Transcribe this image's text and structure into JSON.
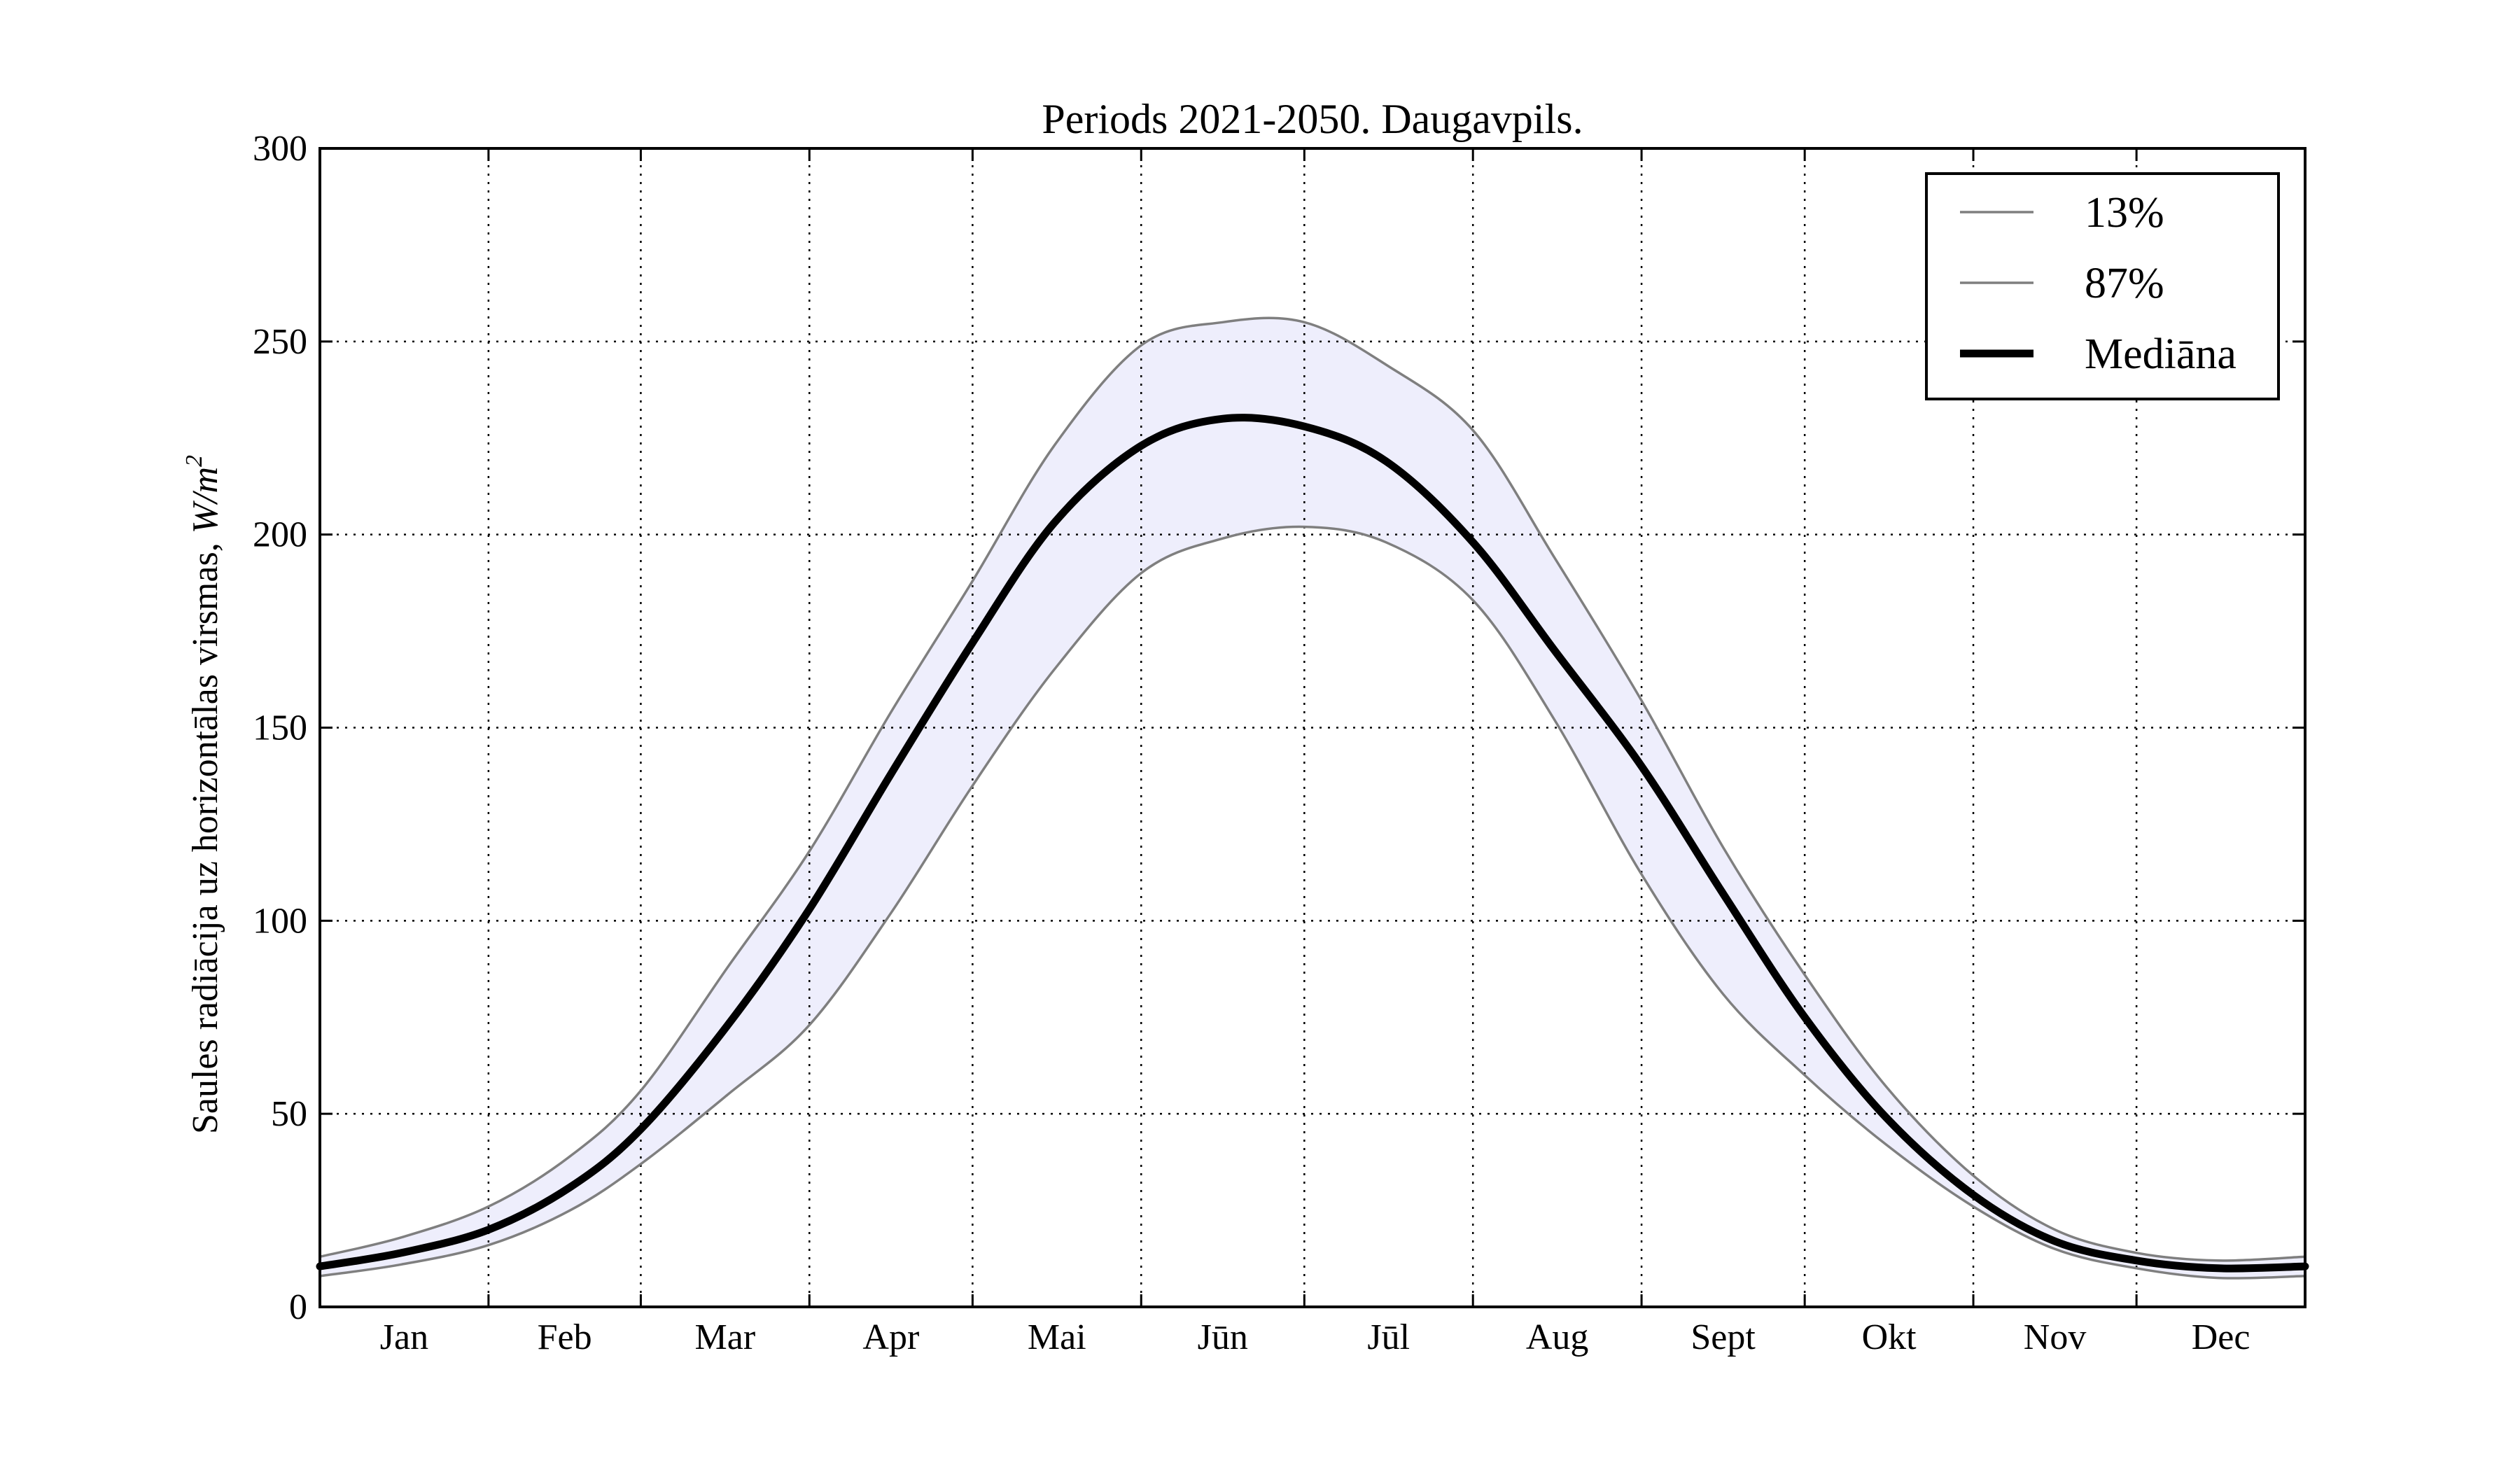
{
  "chart_data": {
    "type": "line",
    "title": "Periods 2021-2050. Daugavpils.",
    "ylabel_text": "Saules radiācija uz horizontālas virsmas, ",
    "ylabel_unit_base": "W/m",
    "ylabel_unit_exp": "2",
    "xlabel": "",
    "ylim": [
      0,
      300
    ],
    "yticks": [
      0,
      50,
      100,
      150,
      200,
      250,
      300
    ],
    "xlim": [
      0,
      365
    ],
    "month_boundaries": [
      0,
      31,
      59,
      90,
      120,
      151,
      181,
      212,
      243,
      273,
      304,
      334,
      365
    ],
    "categories": [
      "Jan",
      "Feb",
      "Mar",
      "Apr",
      "Mai",
      "Jūn",
      "Jūl",
      "Aug",
      "Sept",
      "Okt",
      "Nov",
      "Dec"
    ],
    "grid": true,
    "legend_position": "top-right",
    "band_color": "#eeeefc",
    "x": [
      0,
      15,
      31,
      46,
      59,
      75,
      90,
      105,
      120,
      135,
      151,
      166,
      181,
      196,
      212,
      227,
      243,
      258,
      273,
      288,
      304,
      319,
      334,
      349,
      365
    ],
    "series": [
      {
        "name": "13%",
        "color": "#7f7f7f",
        "values": [
          8,
          11,
          16,
          25,
          37,
          55,
          73,
          102,
          135,
          165,
          190,
          199,
          202,
          198,
          183,
          152,
          112,
          81,
          60,
          42,
          26,
          15,
          10,
          7.5,
          8
        ]
      },
      {
        "name": "87%",
        "color": "#7f7f7f",
        "values": [
          13,
          18,
          26,
          39,
          56,
          88,
          118,
          154,
          188,
          223,
          249,
          255,
          255,
          244,
          227,
          194,
          157,
          119,
          86,
          57,
          34,
          20,
          14,
          12,
          13
        ]
      },
      {
        "name": "Mediāna",
        "color": "#000000",
        "values": [
          10.5,
          14,
          20,
          31,
          46,
          73,
          103,
          138,
          172,
          203,
          223,
          230,
          228,
          219,
          198,
          170,
          140,
          107,
          75,
          49,
          29,
          17,
          12,
          10,
          10.5
        ]
      }
    ]
  }
}
